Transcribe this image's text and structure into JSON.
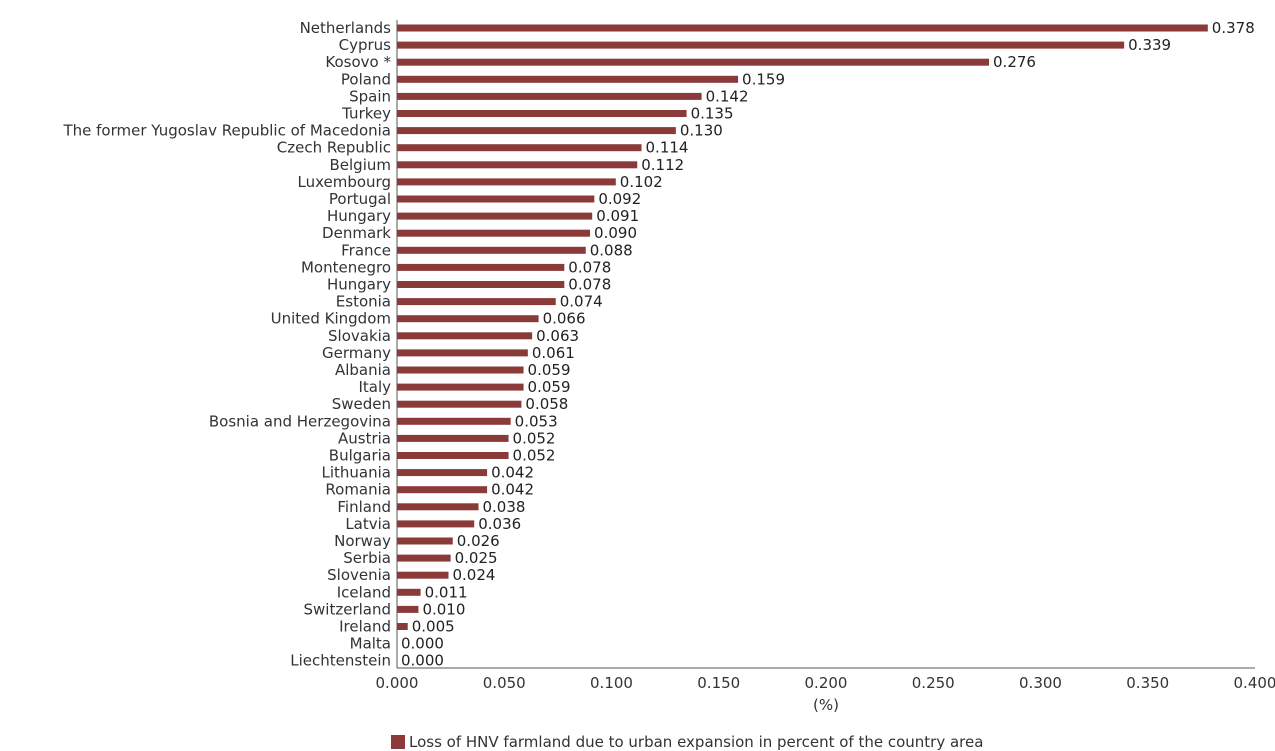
{
  "chart_data": {
    "type": "bar",
    "orientation": "horizontal",
    "categories": [
      "Netherlands",
      "Cyprus",
      "Kosovo *",
      "Poland",
      "Spain",
      "Turkey",
      "The former Yugoslav Republic of Macedonia",
      "Czech Republic",
      "Belgium",
      "Luxembourg",
      "Portugal",
      "Hungary",
      "Denmark",
      "France",
      "Montenegro",
      "Hungary",
      "Estonia",
      "United Kingdom",
      "Slovakia",
      "Germany",
      "Albania",
      "Italy",
      "Sweden",
      "Bosnia and Herzegovina",
      "Austria",
      "Bulgaria",
      "Lithuania",
      "Romania",
      "Finland",
      "Latvia",
      "Norway",
      "Serbia",
      "Slovenia",
      "Iceland",
      "Switzerland",
      "Ireland",
      "Malta",
      "Liechtenstein"
    ],
    "values": [
      0.378,
      0.339,
      0.276,
      0.159,
      0.142,
      0.135,
      0.13,
      0.114,
      0.112,
      0.102,
      0.092,
      0.091,
      0.09,
      0.088,
      0.078,
      0.078,
      0.074,
      0.066,
      0.063,
      0.061,
      0.059,
      0.059,
      0.058,
      0.053,
      0.052,
      0.052,
      0.042,
      0.042,
      0.038,
      0.036,
      0.026,
      0.025,
      0.024,
      0.011,
      0.01,
      0.005,
      0.0,
      0.0
    ],
    "value_labels": [
      "0.378",
      "0.339",
      "0.276",
      "0.159",
      "0.142",
      "0.135",
      "0.130",
      "0.114",
      "0.112",
      "0.102",
      "0.092",
      "0.091",
      "0.090",
      "0.088",
      "0.078",
      "0.078",
      "0.074",
      "0.066",
      "0.063",
      "0.061",
      "0.059",
      "0.059",
      "0.058",
      "0.053",
      "0.052",
      "0.052",
      "0.042",
      "0.042",
      "0.038",
      "0.036",
      "0.026",
      "0.025",
      "0.024",
      "0.011",
      "0.010",
      "0.005",
      "0.000",
      "0.000"
    ],
    "x_ticks": [
      0,
      0.05,
      0.1,
      0.15,
      0.2,
      0.25,
      0.3,
      0.35,
      0.4
    ],
    "x_tick_labels": [
      "0.000",
      "0.050",
      "0.100",
      "0.150",
      "0.200",
      "0.250",
      "0.300",
      "0.350",
      "0.400"
    ],
    "xlim": [
      0,
      0.4
    ],
    "xlabel": "(%)",
    "ylabel": "",
    "title": "",
    "grid": false,
    "legend_position": "bottom",
    "series": [
      {
        "name": "Loss of HNV farmland due to urban expansion in percent of the country area",
        "color": "#8b3a3a"
      }
    ]
  }
}
